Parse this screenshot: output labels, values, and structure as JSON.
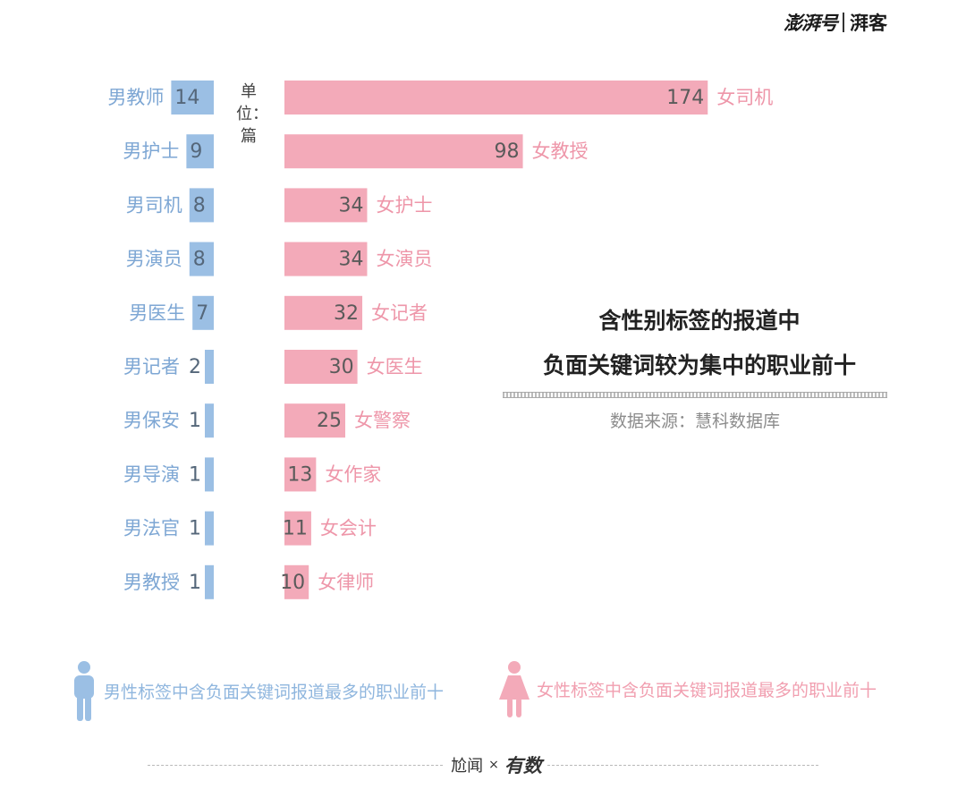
{
  "brand": {
    "logo": "澎湃号",
    "column": "湃客"
  },
  "chart_data": {
    "type": "bar",
    "title_line1": "含性别标签的报道中",
    "title_line2": "负面关键词较为集中的职业前十",
    "unit_label": "单位：篇",
    "source": "数据来源：慧科数据库",
    "colors": {
      "male": "#9bbfe4",
      "female": "#f3aab9",
      "male_text": "#7ea7d4",
      "female_text": "#ee96a9"
    },
    "series": [
      {
        "name": "男性标签中含负面关键词报道最多的职业前十",
        "categories": [
          "男教师",
          "男护士",
          "男司机",
          "男演员",
          "男医生",
          "男记者",
          "男保安",
          "男导演",
          "男法官",
          "男教授"
        ],
        "values": [
          14,
          9,
          8,
          8,
          7,
          2,
          1,
          1,
          1,
          1
        ]
      },
      {
        "name": "女性标签中含负面关键词报道最多的职业前十",
        "categories": [
          "女司机",
          "女教授",
          "女护士",
          "女演员",
          "女记者",
          "女医生",
          "女警察",
          "女作家",
          "女会计",
          "女律师"
        ],
        "values": [
          174,
          98,
          34,
          34,
          32,
          30,
          25,
          13,
          11,
          10
        ]
      }
    ]
  },
  "legend": {
    "male_icon": "male-person-icon",
    "female_icon": "female-person-icon"
  },
  "footer": {
    "left": "尬闻",
    "times": "×",
    "right": "有数"
  }
}
